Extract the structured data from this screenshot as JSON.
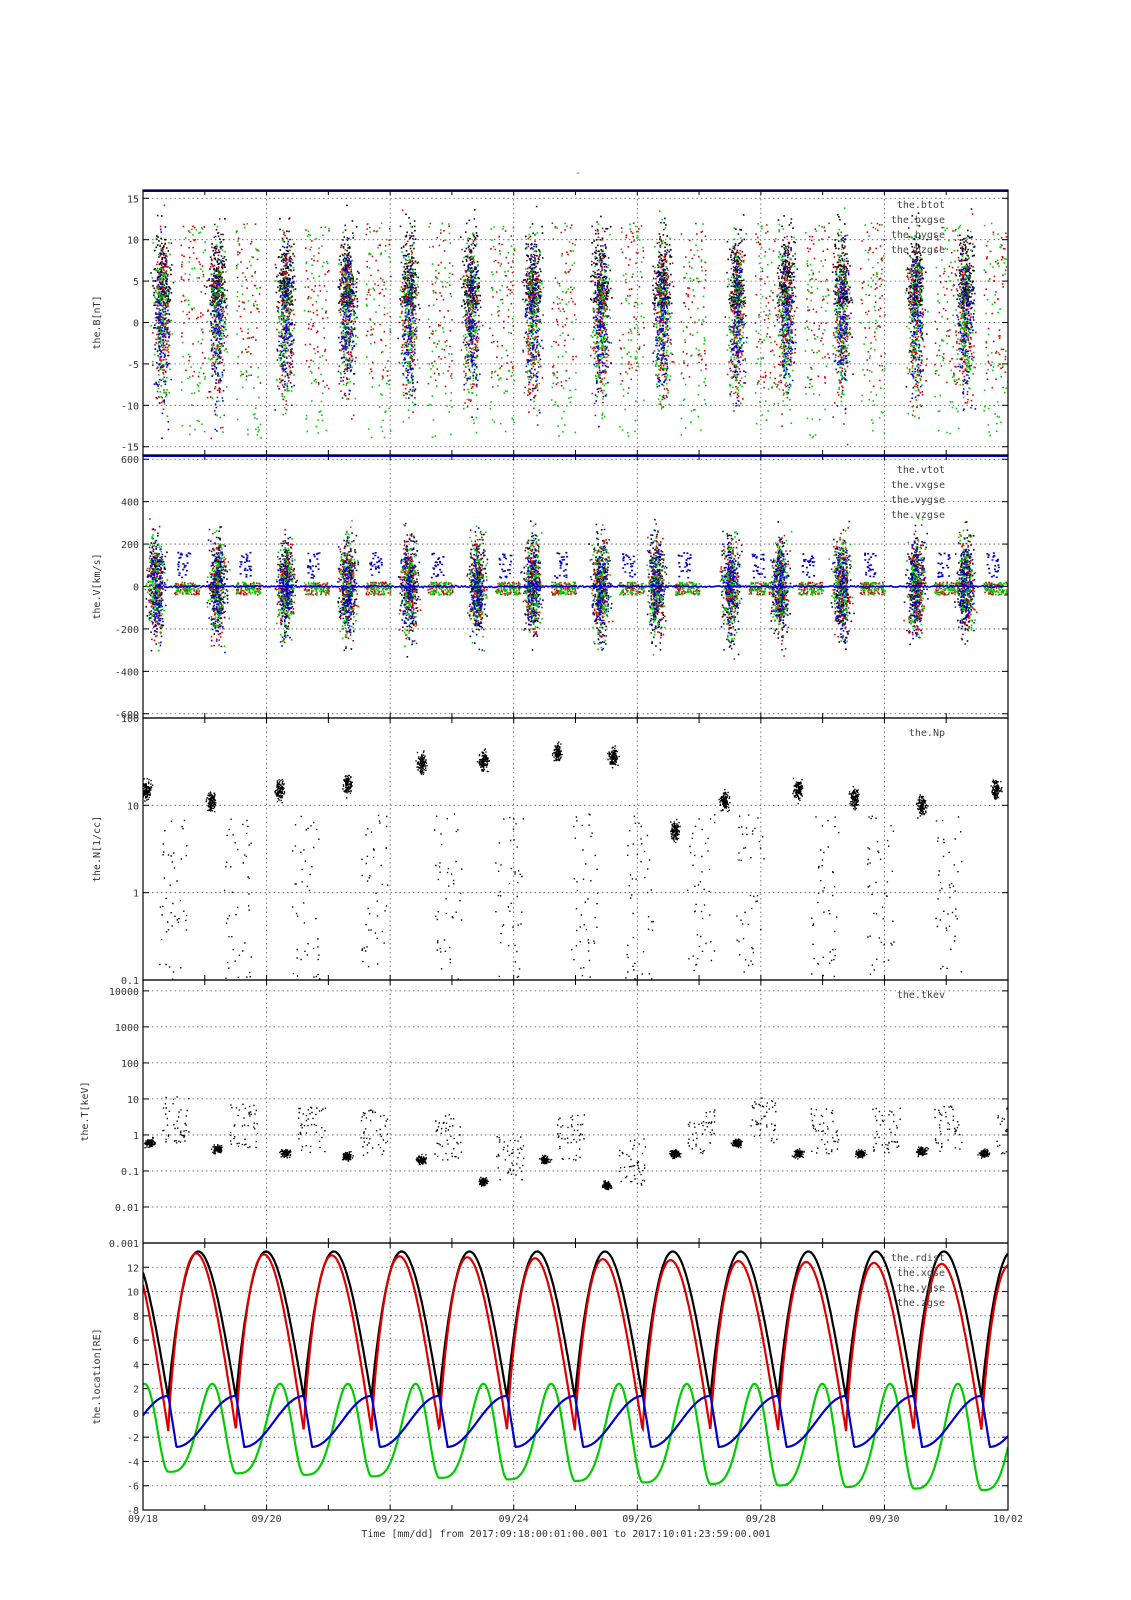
{
  "page": {
    "title": "-"
  },
  "time": {
    "caption": "Time [mm/dd]  from 2017:09:18:00:01:00.001  to  2017:10:01:23:59:00.001",
    "x_ticks": [
      "09/18",
      "09/20",
      "09/22",
      "09/24",
      "09/26",
      "09/28",
      "09/30",
      "10/02"
    ],
    "xlim_days": [
      0,
      14
    ]
  },
  "colors": {
    "black": "#000000",
    "red": "#dd0000",
    "green": "#00cc00",
    "blue": "#0000cc",
    "grid": "#555555"
  },
  "chart_data": [
    {
      "id": "B",
      "type": "scatter",
      "ylabel": "the.B[nT]",
      "ylim": [
        -16,
        16
      ],
      "yticks": [
        15,
        10,
        5,
        0,
        -5,
        -10,
        -15
      ],
      "ytick_labels": [
        "15",
        "10",
        "5",
        "0",
        "-5",
        "-10",
        "-15"
      ],
      "grid": true,
      "legend_position": "top-right",
      "series": [
        {
          "name": "the.btot",
          "color": "#000000"
        },
        {
          "name": "the.bxgse",
          "color": "#dd0000"
        },
        {
          "name": "the.bygse",
          "color": "#00cc00"
        },
        {
          "name": "the.bzgse",
          "color": "#0000cc"
        }
      ],
      "bursts_days": [
        0.3,
        1.2,
        2.3,
        3.3,
        4.3,
        5.3,
        6.3,
        7.4,
        8.4,
        9.6,
        10.4,
        11.3,
        12.5,
        13.3
      ]
    },
    {
      "id": "V",
      "type": "scatter",
      "ylabel": "the.V[km/s]",
      "ylim": [
        -620,
        620
      ],
      "yticks": [
        600,
        400,
        200,
        0,
        -200,
        -400,
        -600
      ],
      "ytick_labels": [
        "600",
        "400",
        "200",
        "0",
        "-200",
        "-400",
        "-600"
      ],
      "grid": true,
      "legend_position": "top-right",
      "series": [
        {
          "name": "the.vtot",
          "color": "#000000"
        },
        {
          "name": "the.vxgse",
          "color": "#dd0000"
        },
        {
          "name": "the.vygse",
          "color": "#00cc00"
        },
        {
          "name": "the.vzgse",
          "color": "#0000cc"
        }
      ],
      "bursts_days": [
        0.2,
        1.2,
        2.3,
        3.3,
        4.3,
        5.4,
        6.3,
        7.4,
        8.3,
        9.5,
        10.3,
        11.3,
        12.5,
        13.3
      ]
    },
    {
      "id": "N",
      "type": "scatter",
      "scale": "log",
      "ylabel": "the.N[1/cc]",
      "ylim": [
        0.1,
        100
      ],
      "yticks": [
        100,
        10,
        1,
        0.1
      ],
      "ytick_labels": [
        "100",
        "10",
        "1",
        "0.1"
      ],
      "grid": true,
      "legend_position": "top-right",
      "series": [
        {
          "name": "the.Np",
          "color": "#000000"
        }
      ],
      "clusters": [
        {
          "d": 0.05,
          "v": 15
        },
        {
          "d": 1.1,
          "v": 11
        },
        {
          "d": 2.2,
          "v": 15
        },
        {
          "d": 3.3,
          "v": 17
        },
        {
          "d": 4.5,
          "v": 30
        },
        {
          "d": 5.5,
          "v": 32
        },
        {
          "d": 6.7,
          "v": 40
        },
        {
          "d": 7.6,
          "v": 35
        },
        {
          "d": 8.6,
          "v": 5
        },
        {
          "d": 9.4,
          "v": 11
        },
        {
          "d": 10.6,
          "v": 15
        },
        {
          "d": 11.5,
          "v": 12
        },
        {
          "d": 12.6,
          "v": 10
        },
        {
          "d": 13.8,
          "v": 15
        }
      ]
    },
    {
      "id": "T",
      "type": "scatter",
      "scale": "log",
      "ylabel": "the.T[keV]",
      "ylim": [
        0.001,
        20000
      ],
      "yticks": [
        10000,
        1000,
        100,
        10,
        1,
        0.1,
        0.01,
        0.001
      ],
      "ytick_labels": [
        "10000",
        "1000",
        "100",
        "10",
        "1",
        "0.1",
        "0.01",
        "0.001"
      ],
      "grid": true,
      "legend_position": "top-right",
      "series": [
        {
          "name": "the.tkev",
          "color": "#000000"
        }
      ],
      "clusters": [
        {
          "d": 0.1,
          "v": 0.6
        },
        {
          "d": 1.2,
          "v": 0.4
        },
        {
          "d": 2.3,
          "v": 0.3
        },
        {
          "d": 3.3,
          "v": 0.25
        },
        {
          "d": 4.5,
          "v": 0.2
        },
        {
          "d": 5.5,
          "v": 0.05
        },
        {
          "d": 6.5,
          "v": 0.2
        },
        {
          "d": 7.5,
          "v": 0.04
        },
        {
          "d": 8.6,
          "v": 0.3
        },
        {
          "d": 9.6,
          "v": 0.6
        },
        {
          "d": 10.6,
          "v": 0.3
        },
        {
          "d": 11.6,
          "v": 0.3
        },
        {
          "d": 12.6,
          "v": 0.35
        },
        {
          "d": 13.6,
          "v": 0.3
        }
      ]
    },
    {
      "id": "location",
      "type": "line",
      "ylabel": "the.location[RE]",
      "ylim": [
        -8,
        14
      ],
      "yticks": [
        12,
        10,
        8,
        6,
        4,
        2,
        0,
        -2,
        -4,
        -6,
        -8
      ],
      "ytick_labels": [
        "12",
        "10",
        "8",
        "6",
        "4",
        "2",
        "0",
        "-2",
        "-4",
        "-6",
        "-8"
      ],
      "grid": true,
      "legend_position": "top-right",
      "orbit": {
        "period_days": 1.097,
        "phase_days": 0.41
      },
      "series": [
        {
          "name": "the.rdist",
          "color": "#000000",
          "apogee": 13.3,
          "perigee": 1.2
        },
        {
          "name": "the.xgse",
          "color": "#dd0000",
          "apogee_start": 13.2,
          "apogee_end": 12.2,
          "perigee": -1.5
        },
        {
          "name": "the.ygse",
          "color": "#00cc00",
          "max": 2.4,
          "min_start": -4.8,
          "min_end": -6.4
        },
        {
          "name": "the.zgse",
          "color": "#0000cc",
          "max": 1.4,
          "min": -2.8
        }
      ]
    }
  ]
}
